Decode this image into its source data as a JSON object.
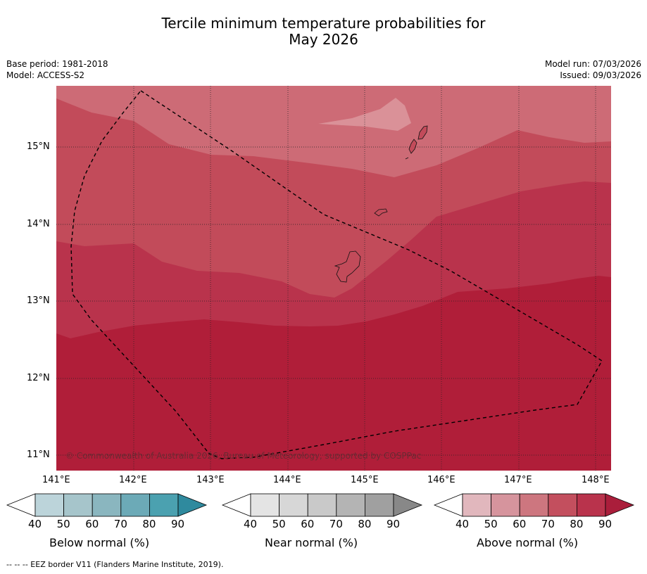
{
  "title_line1": "Tercile minimum temperature probabilities for",
  "title_line2": "May 2026",
  "base_period": "Base period: 1981-2018",
  "model": "Model: ACCESS-S2",
  "model_run": "Model run: 07/03/2026",
  "issued": "Issued: 09/03/2026",
  "lat_labels": [
    "15°N",
    "14°N",
    "13°N",
    "12°N",
    "11°N"
  ],
  "lon_labels": [
    "141°E",
    "142°E",
    "143°E",
    "144°E",
    "145°E",
    "146°E",
    "147°E",
    "148°E"
  ],
  "copyright": "© Commonwealth of Australia 2026, Bureau of Meteorology, supported by COSPPac",
  "colorbars": [
    {
      "label": "Below normal (%)",
      "ticks": [
        "40",
        "50",
        "60",
        "70",
        "80",
        "90"
      ],
      "colors": [
        "#bcd4da",
        "#a6c5cb",
        "#8ab6bf",
        "#6caab7",
        "#4ba1b0",
        "#2f8a9e"
      ]
    },
    {
      "label": "Near normal (%)",
      "ticks": [
        "40",
        "50",
        "60",
        "70",
        "80",
        "90"
      ],
      "colors": [
        "#e4e4e4",
        "#d7d7d7",
        "#c9c9c9",
        "#b4b4b4",
        "#a0a0a0",
        "#888888"
      ]
    },
    {
      "label": "Above normal (%)",
      "ticks": [
        "40",
        "50",
        "60",
        "70",
        "80",
        "90"
      ],
      "colors": [
        "#e1b7bd",
        "#d6949d",
        "#cd767f",
        "#c34f5e",
        "#b9334c",
        "#aa1e3b"
      ]
    }
  ],
  "footer": "--  --  -- EEZ border V11 (Flanders Marine Institute, 2019)."
}
